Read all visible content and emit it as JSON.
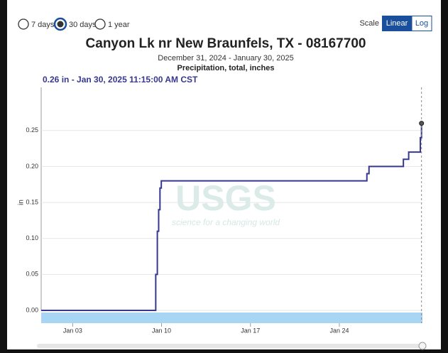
{
  "controls": {
    "periods": [
      "7 days",
      "30 days",
      "1 year"
    ],
    "selected_period": 1,
    "scale_label": "Scale",
    "scales": [
      "Linear",
      "Log"
    ],
    "selected_scale": 0
  },
  "chart_data": {
    "type": "step",
    "title": "Canyon Lk nr New Braunfels, TX - 08167700",
    "subtitle": "December 31, 2024 - January 30, 2025",
    "parameter": "Precipitation, total, inches",
    "annotation": "0.26 in - Jan 30, 2025 11:15:00 AM CST",
    "y_label": "in",
    "watermark": "USGS",
    "watermark_tagline": "science for a changing world",
    "series": [
      {
        "name": "Precipitation, total, inches",
        "color": "#37378f",
        "x": [
          "2024-12-31T12:30",
          "2025-01-09T13:00",
          "2025-01-09T16:00",
          "2025-01-09T18:30",
          "2025-01-09T21:00",
          "2025-01-09T23:30",
          "2025-01-26T04:00",
          "2025-01-26T08:00",
          "2025-01-29T01:00",
          "2025-01-29T11:00",
          "2025-01-30T09:00",
          "2025-01-30T11:15"
        ],
        "values": [
          0,
          0.05,
          0.11,
          0.14,
          0.17,
          0.18,
          0.19,
          0.2,
          0.21,
          0.22,
          0.24,
          0.26
        ]
      }
    ],
    "xlim": [
      "2024-12-31T12:30",
      "2025-01-30T13:00"
    ],
    "xticks": [
      {
        "value": "2025-01-03T00:00",
        "label": "Jan 03"
      },
      {
        "value": "2025-01-10T00:00",
        "label": "Jan 10"
      },
      {
        "value": "2025-01-17T00:00",
        "label": "Jan 17"
      },
      {
        "value": "2025-01-24T00:00",
        "label": "Jan 24"
      }
    ],
    "ylim": [
      0,
      0.31
    ],
    "yticks": [
      {
        "value": 0,
        "label": "0.00"
      },
      {
        "value": 0.05,
        "label": "0.05"
      },
      {
        "value": 0.1,
        "label": "0.10"
      },
      {
        "value": 0.15,
        "label": "0.15"
      },
      {
        "value": 0.2,
        "label": "0.20"
      },
      {
        "value": 0.25,
        "label": "0.25"
      }
    ],
    "grid": true
  }
}
